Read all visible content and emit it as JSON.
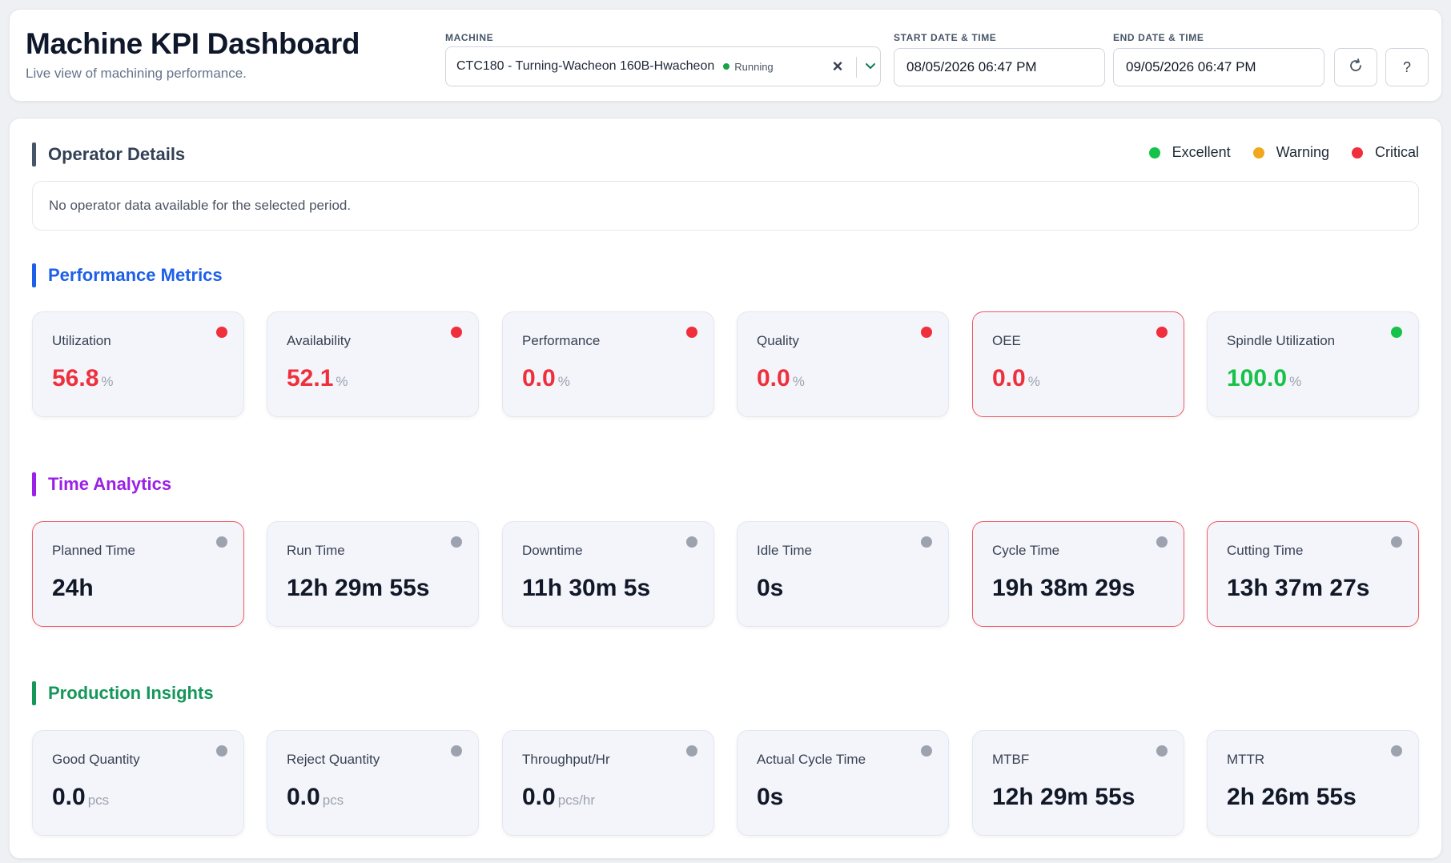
{
  "header": {
    "title": "Machine KPI Dashboard",
    "subtitle": "Live view of machining performance.",
    "machine_label": "MACHINE",
    "machine_value": "CTC180 - Turning-Wacheon 160B-Hwacheon",
    "machine_status": "Running",
    "start_label": "START DATE & TIME",
    "start_value": "08/05/2026 06:47 PM",
    "end_label": "END DATE & TIME",
    "end_value": "09/05/2026 06:47 PM",
    "help_label": "?"
  },
  "colors": {
    "excellent": "#16c24a",
    "warning": "#f2a81d",
    "critical": "#ef2f3b",
    "neutral": "#9ca3af",
    "operator_accent": "#475569",
    "performance_accent": "#1d5fe8",
    "time_accent": "#9b21e6",
    "production_accent": "#15975a"
  },
  "legend": [
    {
      "label": "Excellent",
      "color": "#16c24a"
    },
    {
      "label": "Warning",
      "color": "#f2a81d"
    },
    {
      "label": "Critical",
      "color": "#ef2f3b"
    }
  ],
  "operator": {
    "title": "Operator Details",
    "empty_message": "No operator data available for the selected period."
  },
  "performance": {
    "title": "Performance Metrics",
    "cards": [
      {
        "label": "Utilization",
        "value": "56.8",
        "unit": "%",
        "status": "critical"
      },
      {
        "label": "Availability",
        "value": "52.1",
        "unit": "%",
        "status": "critical"
      },
      {
        "label": "Performance",
        "value": "0.0",
        "unit": "%",
        "status": "critical"
      },
      {
        "label": "Quality",
        "value": "0.0",
        "unit": "%",
        "status": "critical"
      },
      {
        "label": "OEE",
        "value": "0.0",
        "unit": "%",
        "status": "critical",
        "highlight": true
      },
      {
        "label": "Spindle Utilization",
        "value": "100.0",
        "unit": "%",
        "status": "excellent"
      }
    ]
  },
  "time": {
    "title": "Time Analytics",
    "cards": [
      {
        "label": "Planned Time",
        "value": "24h",
        "unit": "",
        "status": "neutral",
        "highlight": true
      },
      {
        "label": "Run Time",
        "value": "12h 29m 55s",
        "unit": "",
        "status": "neutral"
      },
      {
        "label": "Downtime",
        "value": "11h 30m 5s",
        "unit": "",
        "status": "neutral"
      },
      {
        "label": "Idle Time",
        "value": "0s",
        "unit": "",
        "status": "neutral"
      },
      {
        "label": "Cycle Time",
        "value": "19h 38m 29s",
        "unit": "",
        "status": "neutral",
        "highlight": true
      },
      {
        "label": "Cutting Time",
        "value": "13h 37m 27s",
        "unit": "",
        "status": "neutral",
        "highlight": true
      }
    ]
  },
  "production": {
    "title": "Production Insights",
    "cards": [
      {
        "label": "Good Quantity",
        "value": "0.0",
        "unit": "pcs",
        "status": "neutral"
      },
      {
        "label": "Reject Quantity",
        "value": "0.0",
        "unit": "pcs",
        "status": "neutral"
      },
      {
        "label": "Throughput/Hr",
        "value": "0.0",
        "unit": "pcs/hr",
        "status": "neutral"
      },
      {
        "label": "Actual Cycle Time",
        "value": "0s",
        "unit": "",
        "status": "neutral"
      },
      {
        "label": "MTBF",
        "value": "12h 29m 55s",
        "unit": "",
        "status": "neutral"
      },
      {
        "label": "MTTR",
        "value": "2h 26m 55s",
        "unit": "",
        "status": "neutral"
      }
    ]
  }
}
